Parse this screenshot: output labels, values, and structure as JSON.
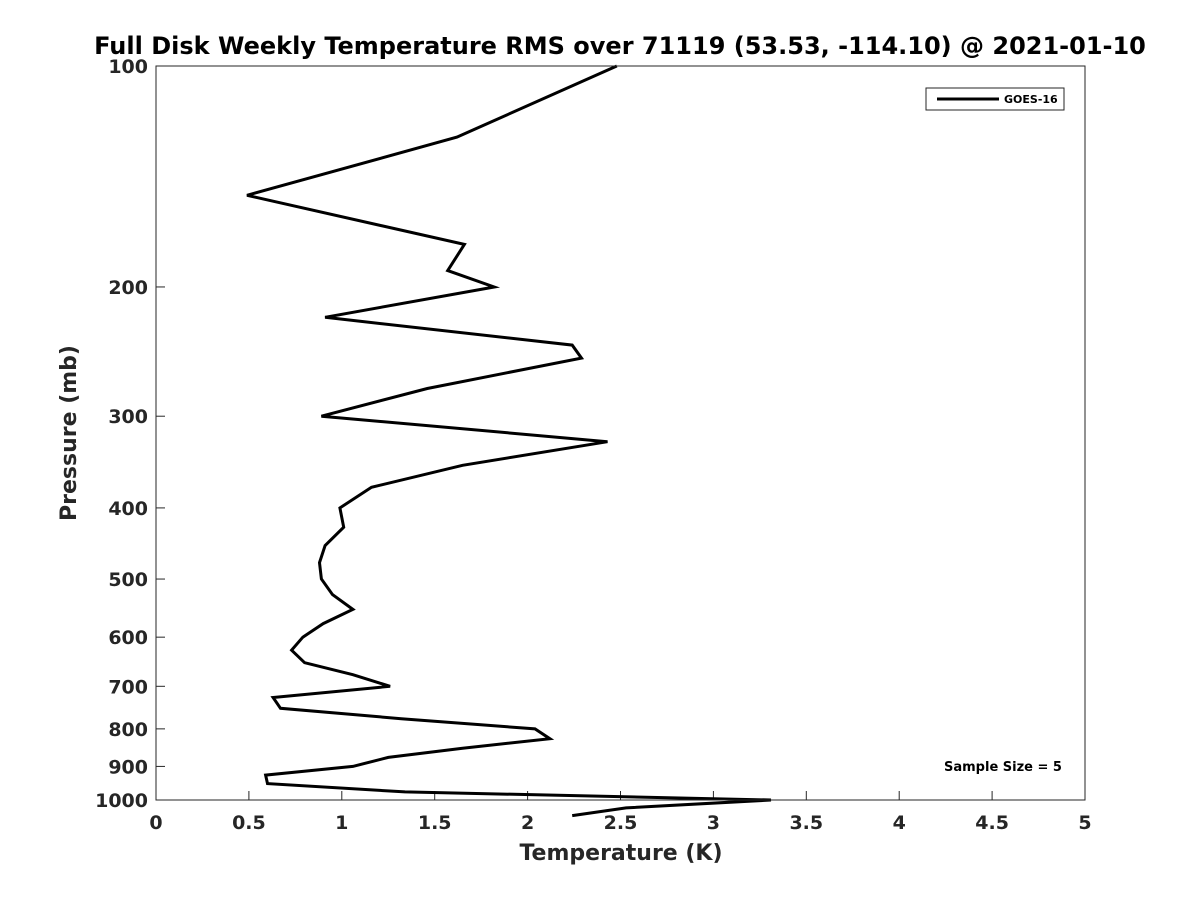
{
  "chart_data": {
    "type": "line",
    "title": "Full Disk Weekly Temperature RMS over 71119 (53.53, -114.10) @ 2021-01-10",
    "xlabel": "Temperature (K)",
    "ylabel": "Pressure (mb)",
    "xlim": [
      0,
      5
    ],
    "ylim": [
      100,
      1000
    ],
    "y_scale": "log",
    "y_reversed": true,
    "grid": false,
    "legend_position": "top-right",
    "x_ticks": [
      "0",
      "0.5",
      "1",
      "1.5",
      "2",
      "2.5",
      "3",
      "3.5",
      "4",
      "4.5",
      "5"
    ],
    "y_ticks": [
      "100",
      "200",
      "300",
      "400",
      "500",
      "600",
      "700",
      "800",
      "900",
      "1000"
    ],
    "series": [
      {
        "name": "GOES-16",
        "color": "#000000",
        "x": [
          2.48,
          1.62,
          0.49,
          1.66,
          1.57,
          1.82,
          0.91,
          2.24,
          2.29,
          1.46,
          0.89,
          2.43,
          1.65,
          1.16,
          0.99,
          1.01,
          0.91,
          0.88,
          0.89,
          0.95,
          1.06,
          0.9,
          0.79,
          0.73,
          0.8,
          1.06,
          1.26,
          0.63,
          0.67,
          1.32,
          2.04,
          2.12,
          1.65,
          1.25,
          1.06,
          0.59,
          0.6,
          1.34,
          3.31,
          2.53,
          2.24
        ],
        "y": [
          100,
          125,
          150,
          175,
          190,
          200,
          220,
          240,
          250,
          275,
          300,
          325,
          350,
          375,
          400,
          425,
          450,
          475,
          500,
          525,
          550,
          575,
          600,
          625,
          650,
          675,
          700,
          725,
          750,
          775,
          800,
          825,
          850,
          875,
          900,
          925,
          950,
          975,
          1000,
          1025,
          1050
        ]
      }
    ],
    "annotation": "Sample Size = 5"
  }
}
